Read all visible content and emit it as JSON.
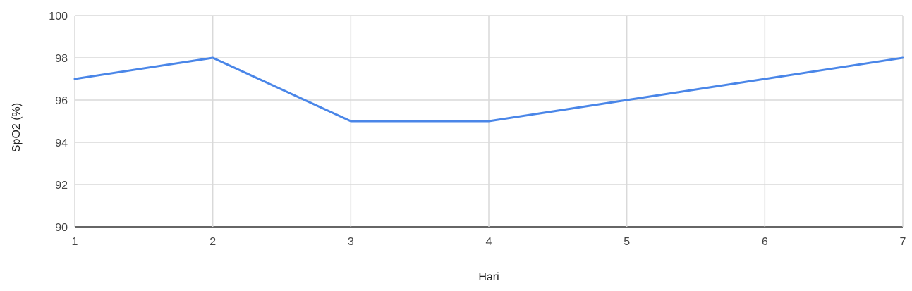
{
  "chart_data": {
    "type": "line",
    "title": "",
    "xlabel": "Hari",
    "ylabel": "SpO2 (%)",
    "x": [
      1,
      2,
      3,
      4,
      5,
      6,
      7
    ],
    "x_ticks": [
      "1",
      "2",
      "3",
      "4",
      "5",
      "6",
      "7"
    ],
    "y_ticks": [
      "90",
      "92",
      "94",
      "96",
      "98",
      "100"
    ],
    "xlim": [
      1,
      7
    ],
    "ylim": [
      90,
      100
    ],
    "grid": true,
    "legend": "none",
    "series": [
      {
        "values": [
          97,
          98,
          95,
          95,
          96,
          97,
          98
        ],
        "color": "#4a86e8"
      }
    ]
  }
}
